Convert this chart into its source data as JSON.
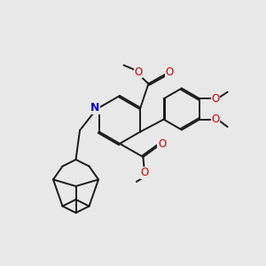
{
  "background_color": "#e8e8e8",
  "bond_color": "#1a1a1a",
  "nitrogen_color": "#0000cc",
  "oxygen_color": "#cc0000",
  "lw": 1.4,
  "dbo": 0.055,
  "figsize": [
    3.0,
    3.0
  ],
  "dpi": 100,
  "xlim": [
    0,
    10
  ],
  "ylim": [
    0,
    10
  ]
}
